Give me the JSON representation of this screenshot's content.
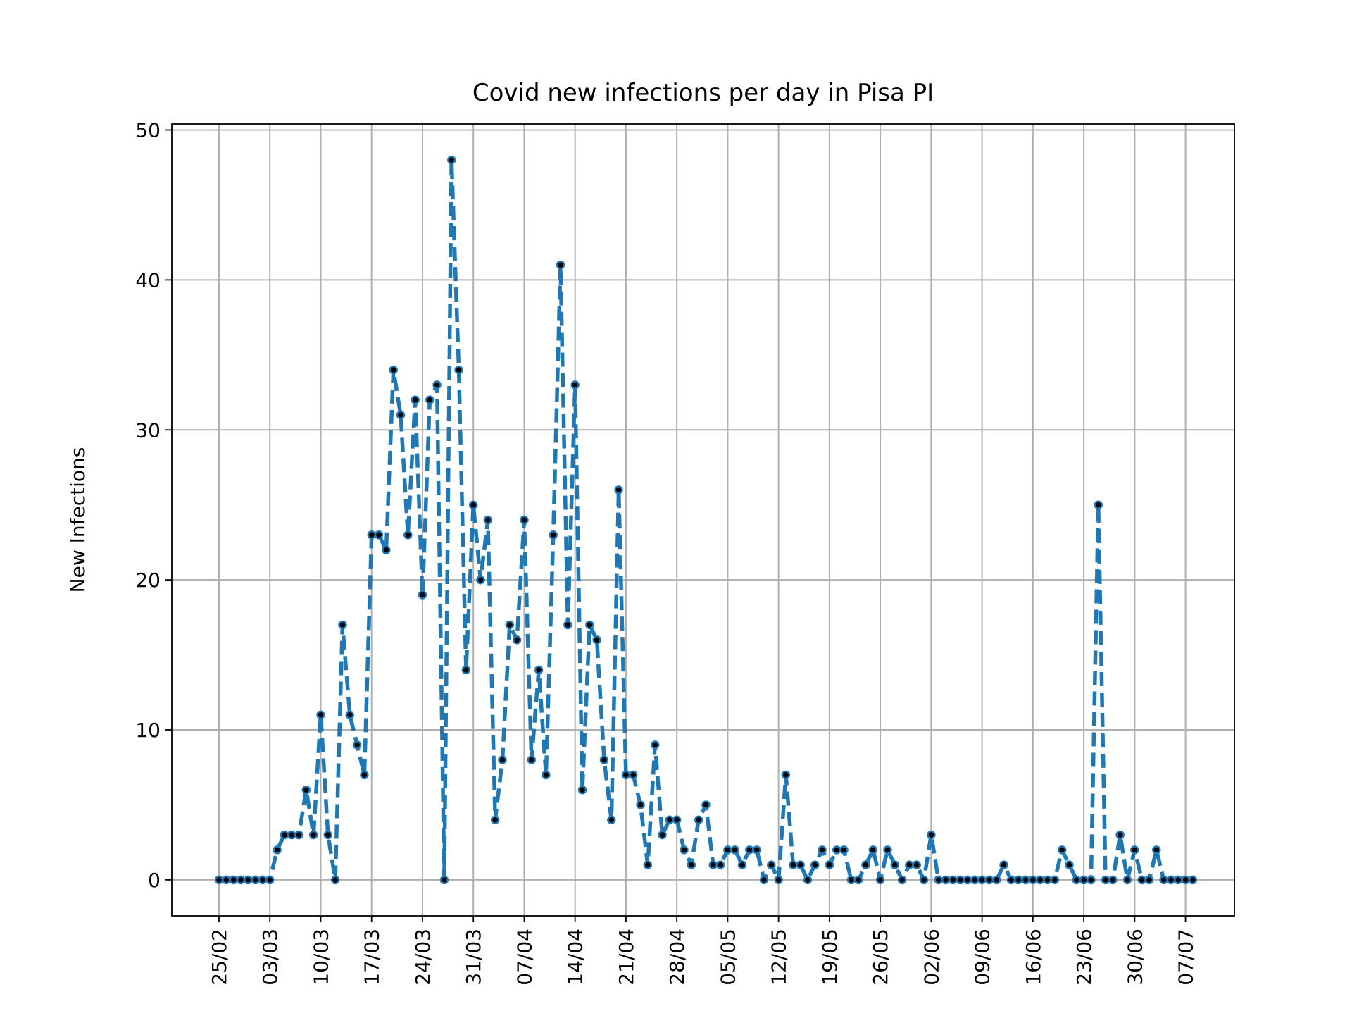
{
  "chart_data": {
    "type": "line",
    "title": "Covid new infections per day in Pisa PI",
    "xlabel": "",
    "ylabel": "New Infections",
    "start_date": "2020-02-25",
    "x_tick_labels": [
      "25/02",
      "03/03",
      "10/03",
      "17/03",
      "24/03",
      "31/03",
      "07/04",
      "14/04",
      "21/04",
      "28/04",
      "05/05",
      "12/05",
      "19/05",
      "26/05",
      "02/06",
      "09/06",
      "16/06",
      "23/06",
      "30/06",
      "07/07"
    ],
    "y_ticks": [
      0,
      10,
      20,
      30,
      40,
      50
    ],
    "ylim": [
      -2.4,
      50.4
    ],
    "grid": true,
    "line_color": "#1f77b4",
    "marker_color": "#000000",
    "line_style": "dashed",
    "series": [
      {
        "values": [
          0,
          0,
          0,
          0,
          0,
          0,
          0,
          0,
          2,
          3,
          3,
          3,
          6,
          3,
          11,
          3,
          0,
          17,
          11,
          9,
          7,
          23,
          23,
          22,
          34,
          31,
          23,
          32,
          19,
          32,
          33,
          0,
          48,
          34,
          14,
          25,
          20,
          24,
          4,
          8,
          17,
          16,
          24,
          8,
          14,
          7,
          23,
          41,
          17,
          33,
          6,
          17,
          16,
          8,
          4,
          26,
          7,
          7,
          5,
          1,
          9,
          3,
          4,
          4,
          2,
          1,
          4,
          5,
          1,
          1,
          2,
          2,
          1,
          2,
          2,
          0,
          1,
          0,
          7,
          1,
          1,
          0,
          1,
          2,
          1,
          2,
          2,
          0,
          0,
          1,
          2,
          0,
          2,
          1,
          0,
          1,
          1,
          0,
          3,
          0,
          0,
          0,
          0,
          0,
          0,
          0,
          0,
          0,
          1,
          0,
          0,
          0,
          0,
          0,
          0,
          0,
          2,
          1,
          0,
          0,
          0,
          25,
          0,
          0,
          3,
          0,
          2,
          0,
          0,
          2,
          0,
          0,
          0,
          0,
          0
        ]
      }
    ]
  }
}
